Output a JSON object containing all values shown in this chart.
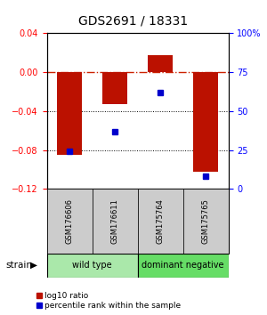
{
  "title": "GDS2691 / 18331",
  "samples": [
    "GSM176606",
    "GSM176611",
    "GSM175764",
    "GSM175765"
  ],
  "log10_ratio": [
    -0.085,
    -0.033,
    0.017,
    -0.102
  ],
  "percentile_rank": [
    24,
    37,
    62,
    8
  ],
  "groups": [
    {
      "name": "wild type",
      "samples": [
        0,
        1
      ],
      "color": "#aae8aa"
    },
    {
      "name": "dominant negative",
      "samples": [
        2,
        3
      ],
      "color": "#66dd66"
    }
  ],
  "ylim_left": [
    -0.12,
    0.04
  ],
  "ylim_right": [
    0,
    100
  ],
  "yticks_left": [
    -0.12,
    -0.08,
    -0.04,
    0,
    0.04
  ],
  "yticks_right": [
    0,
    25,
    50,
    75,
    100
  ],
  "bar_color": "#bb1100",
  "point_color": "#0000cc",
  "zero_line_color": "#cc2200",
  "bg_color": "#ffffff",
  "label_area_color": "#cccccc",
  "strain_label": "strain",
  "legend_bar_label": "log10 ratio",
  "legend_point_label": "percentile rank within the sample"
}
